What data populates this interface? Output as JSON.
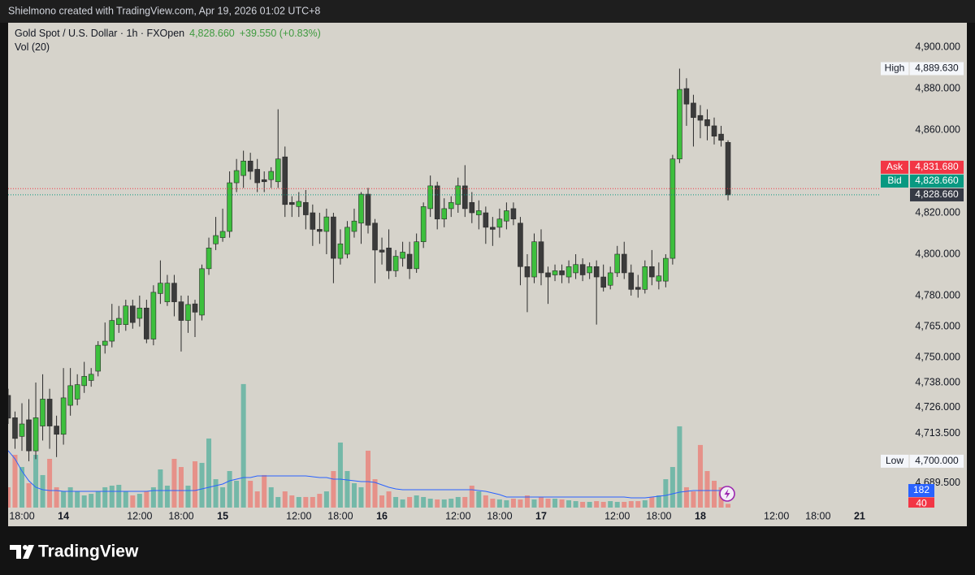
{
  "header": {
    "caption": "Shielmono created with TradingView.com, Apr 19, 2026 01:02 UTC+8"
  },
  "chart_data": {
    "type": "candlestick",
    "legend_title": "Gold Spot / U.S. Dollar · 1h · FXOpen",
    "legend_price": "4,828.660",
    "legend_change": "+39.550 (+0.83%)",
    "volume_title": "Vol (20)",
    "categories": [
      null,
      null,
      "18:00",
      null,
      null,
      null,
      null,
      null,
      "14",
      null,
      null,
      null,
      null,
      null,
      null,
      null,
      null,
      null,
      null,
      "12:00",
      null,
      null,
      null,
      null,
      null,
      "18:00",
      null,
      null,
      null,
      null,
      null,
      "15",
      null,
      null,
      null,
      null,
      null,
      null,
      null,
      null,
      null,
      null,
      "12:00",
      null,
      null,
      null,
      null,
      null,
      "18:00",
      null,
      null,
      null,
      null,
      null,
      "16",
      null,
      null,
      null,
      null,
      null,
      null,
      null,
      null,
      null,
      null,
      "12:00",
      null,
      null,
      null,
      null,
      null,
      "18:00",
      null,
      null,
      null,
      null,
      null,
      "17",
      null,
      null,
      null,
      null,
      null,
      null,
      null,
      null,
      null,
      null,
      "12:00",
      null,
      null,
      null,
      null,
      null,
      "18:00",
      null,
      null,
      null,
      null,
      null,
      "18",
      null,
      null,
      null,
      null,
      null,
      null,
      null,
      null,
      null,
      null,
      "12:00",
      null,
      null,
      null,
      null,
      null,
      "18:00",
      null,
      null,
      null,
      null,
      null,
      "21",
      null,
      null
    ],
    "open": [
      4731.8,
      4721,
      4712,
      4720,
      4705,
      4717,
      4730,
      4717,
      4713,
      4727,
      4730,
      4736.5,
      4739,
      4743.5,
      4756,
      4758,
      4766,
      4766,
      4775,
      4769,
      4774,
      4759,
      4781,
      4777,
      4786,
      4777,
      4768,
      4776,
      4770.6,
      4793,
      4805,
      4808,
      4811,
      4834.5,
      4838,
      4845,
      4841,
      4836,
      4836,
      4835,
      4847,
      4825,
      4823,
      4825,
      4820,
      4812,
      4811,
      4818,
      4798,
      4800,
      4811,
      4815,
      4829,
      4815,
      4802,
      4803,
      4792,
      4798,
      4800,
      4793,
      4806,
      4822,
      4833,
      4817,
      4822,
      4824,
      4833,
      4825,
      4819,
      4820,
      4813,
      4813,
      4816,
      4822,
      4815,
      4794,
      4789,
      4806,
      4791,
      4790,
      4792,
      4789,
      4791,
      4795,
      4791,
      4794,
      4789,
      4785,
      4791,
      4800,
      4791,
      4784,
      4783,
      4794,
      4787,
      4787,
      4798,
      4846,
      4880,
      4873,
      4867,
      4865,
      4862,
      4858,
      4854,
      null,
      null,
      null,
      null,
      null,
      null,
      null,
      null,
      null,
      null,
      null,
      null,
      null,
      null,
      null,
      null,
      null,
      null,
      null,
      null,
      null
    ],
    "high": [
      4735,
      4724,
      4728,
      4730,
      4738,
      4742,
      4735,
      4722,
      4745,
      4745,
      4742,
      4748,
      4745,
      4758,
      4767,
      4776,
      4775,
      4778,
      4778,
      4780,
      4778,
      4785,
      4797,
      4790,
      4790,
      4780,
      4780,
      4778,
      4795,
      4808,
      4818,
      4822,
      4840,
      4846,
      4850,
      4849,
      4846,
      4840,
      4842,
      4870,
      4852,
      4828,
      4830,
      4831,
      4824,
      4820,
      4822,
      4820,
      4812,
      4816,
      4822,
      4830,
      4832,
      4817,
      4808,
      4812,
      4802,
      4806,
      4806,
      4810,
      4825,
      4838,
      4835,
      4827,
      4828,
      4837,
      4843,
      4830,
      4826,
      4823,
      4818,
      4822,
      4825,
      4825,
      4818,
      4800,
      4810,
      4812,
      4794,
      4795,
      4795,
      4797,
      4800,
      4798,
      4796,
      4797,
      4795,
      4794,
      4804,
      4806,
      4795,
      4790,
      4797,
      4802,
      4796,
      4800,
      4848,
      4889.63,
      4885,
      4877,
      4872,
      4870,
      4866,
      4862,
      4855,
      null,
      null,
      null,
      null,
      null,
      null,
      null,
      null,
      null,
      null,
      null,
      null,
      null,
      null,
      null,
      null,
      null,
      null,
      null,
      null,
      null
    ],
    "low": [
      4718,
      4706,
      4705,
      4700,
      4701,
      4710,
      4706,
      4702,
      4708,
      4722,
      4727,
      4733,
      4736,
      4741,
      4752,
      4755,
      4762,
      4763,
      4764,
      4765,
      4757,
      4756,
      4776,
      4775,
      4770,
      4753,
      4762,
      4760,
      4768,
      4790,
      4802,
      4806,
      4808,
      4830,
      4832,
      4836,
      4830,
      4830,
      4832,
      4832,
      4818,
      4818,
      4818,
      4812,
      4804,
      4805,
      4800,
      4786,
      4795,
      4798,
      4808,
      4805,
      4810,
      4786,
      4795,
      4788,
      4789,
      4794,
      4788,
      4791,
      4803,
      4818,
      4812,
      4813,
      4818,
      4820,
      4818,
      4815,
      4812,
      4805,
      4804,
      4808,
      4812,
      4814,
      4785,
      4772,
      4786,
      4785,
      4776,
      4787,
      4786,
      4786,
      4788,
      4787,
      4788,
      4766,
      4782,
      4783,
      4789,
      4788,
      4780,
      4779,
      4781,
      4785,
      4783,
      4784,
      4795,
      4844,
      4862,
      4852,
      4856,
      4855,
      4853,
      4852,
      4826,
      null,
      null,
      null,
      null,
      null,
      null,
      null,
      null,
      null,
      null,
      null,
      null,
      null,
      null,
      null,
      null,
      null,
      null,
      null,
      null,
      null
    ],
    "close": [
      4720.8,
      4711,
      4718,
      4705,
      4721,
      4730,
      4717,
      4713,
      4730.6,
      4736.5,
      4737,
      4741,
      4742,
      4756,
      4758,
      4768,
      4769,
      4775,
      4767,
      4774,
      4759,
      4781.6,
      4786,
      4786,
      4777,
      4768,
      4775.7,
      4772,
      4793,
      4803,
      4809,
      4811,
      4834.5,
      4840.4,
      4845,
      4840,
      4834.5,
      4835,
      4840,
      4846,
      4824,
      4824,
      4825.5,
      4819,
      4812,
      4811,
      4818,
      4798,
      4805,
      4813,
      4816,
      4829,
      4814,
      4802,
      4801,
      4792,
      4799,
      4801,
      4793,
      4806,
      4823,
      4833,
      4817,
      4822,
      4825,
      4833,
      4822,
      4820,
      4821,
      4813,
      4812,
      4817,
      4821,
      4817,
      4794,
      4789,
      4806,
      4791,
      4789,
      4792,
      4790,
      4794,
      4795,
      4790,
      4794,
      4789,
      4784,
      4791,
      4800,
      4791,
      4783,
      4783,
      4794,
      4789,
      4789.5,
      4798,
      4846,
      4879.6,
      4872.5,
      4866,
      4864.7,
      4862,
      4857,
      4855,
      4828.66,
      null,
      null,
      null,
      null,
      null,
      null,
      null,
      null,
      null,
      null,
      null,
      null,
      null,
      null,
      null,
      null,
      null,
      null,
      null,
      null,
      null
    ],
    "volume": [
      217,
      563,
      433,
      260,
      563,
      347,
      520,
      217,
      173,
      217,
      173,
      130,
      147,
      173,
      217,
      234,
      243,
      173,
      130,
      147,
      173,
      217,
      407,
      234,
      520,
      433,
      234,
      494,
      477,
      737,
      303,
      217,
      390,
      286,
      1318,
      286,
      173,
      347,
      217,
      113,
      173,
      130,
      113,
      113,
      113,
      147,
      173,
      390,
      694,
      390,
      260,
      217,
      607,
      303,
      130,
      173,
      113,
      87,
      113,
      130,
      113,
      95,
      87,
      87,
      95,
      113,
      113,
      234,
      173,
      130,
      95,
      87,
      78,
      95,
      87,
      130,
      87,
      113,
      95,
      95,
      87,
      78,
      69,
      61,
      61,
      69,
      61,
      69,
      61,
      61,
      69,
      69,
      78,
      113,
      130,
      303,
      433,
      867,
      217,
      173,
      668,
      390,
      286,
      217,
      40,
      null,
      null,
      null,
      null,
      null,
      null,
      null,
      null,
      null,
      null,
      null,
      null,
      null,
      null,
      null,
      null,
      null,
      null,
      null,
      null,
      null
    ],
    "volume_ma": [
      607,
      520,
      390,
      286,
      217,
      191,
      182,
      182,
      173,
      173,
      173,
      173,
      173,
      173,
      173,
      173,
      173,
      173,
      173,
      173,
      173,
      182,
      182,
      182,
      182,
      182,
      182,
      182,
      199,
      217,
      234,
      251,
      286,
      303,
      321,
      321,
      338,
      338,
      338,
      338,
      338,
      338,
      338,
      338,
      329,
      321,
      321,
      303,
      303,
      295,
      286,
      277,
      277,
      269,
      243,
      217,
      199,
      191,
      191,
      191,
      191,
      191,
      191,
      191,
      191,
      191,
      191,
      191,
      182,
      173,
      156,
      139,
      113,
      113,
      113,
      113,
      113,
      113,
      113,
      113,
      113,
      113,
      113,
      113,
      113,
      113,
      113,
      113,
      113,
      113,
      104,
      104,
      104,
      113,
      121,
      130,
      147,
      165,
      173,
      182,
      182,
      182,
      182,
      182,
      182,
      null,
      null,
      null,
      null,
      null,
      null,
      null,
      null,
      null,
      null,
      null,
      null,
      null,
      null,
      null,
      null,
      null,
      null,
      null,
      null,
      null
    ],
    "ylim": [
      4677.6,
      4911.8
    ],
    "yticks": [
      {
        "value": 4900,
        "label": "4,900.000"
      },
      {
        "value": 4880,
        "label": "4,880.000"
      },
      {
        "value": 4860,
        "label": "4,860.000"
      },
      {
        "value": 4820,
        "label": "4,820.000"
      },
      {
        "value": 4800,
        "label": "4,800.000"
      },
      {
        "value": 4780,
        "label": "4,780.000"
      },
      {
        "value": 4765,
        "label": "4,765.000"
      },
      {
        "value": 4750,
        "label": "4,750.000"
      },
      {
        "value": 4738,
        "label": "4,738.000"
      },
      {
        "value": 4726,
        "label": "4,726.000"
      },
      {
        "value": 4713.5,
        "label": "4,713.500"
      },
      {
        "value": 4689.5,
        "label": "4,689.500"
      }
    ],
    "y2lim": [
      0,
      5173
    ],
    "grid": false,
    "up_color": "#3dbf3d",
    "down_color": "#3b3b3b",
    "volume_up_color": "#74b8a8",
    "volume_down_color": "#e69189",
    "ma_color": "#2962ff",
    "markers": [
      {
        "name": "High",
        "value": 4889.63,
        "label": "4,889.630"
      },
      {
        "name": "Ask",
        "value": 4831.68,
        "label": "4,831.680",
        "color": "#f23645"
      },
      {
        "name": "Bid",
        "value": 4828.66,
        "label": "4,828.660",
        "color": "#089981"
      },
      {
        "name": "Low",
        "value": 4700,
        "label": "4,700.000"
      }
    ],
    "last_label": "4,828.660"
  },
  "footer": {
    "brand": "TradingView"
  }
}
